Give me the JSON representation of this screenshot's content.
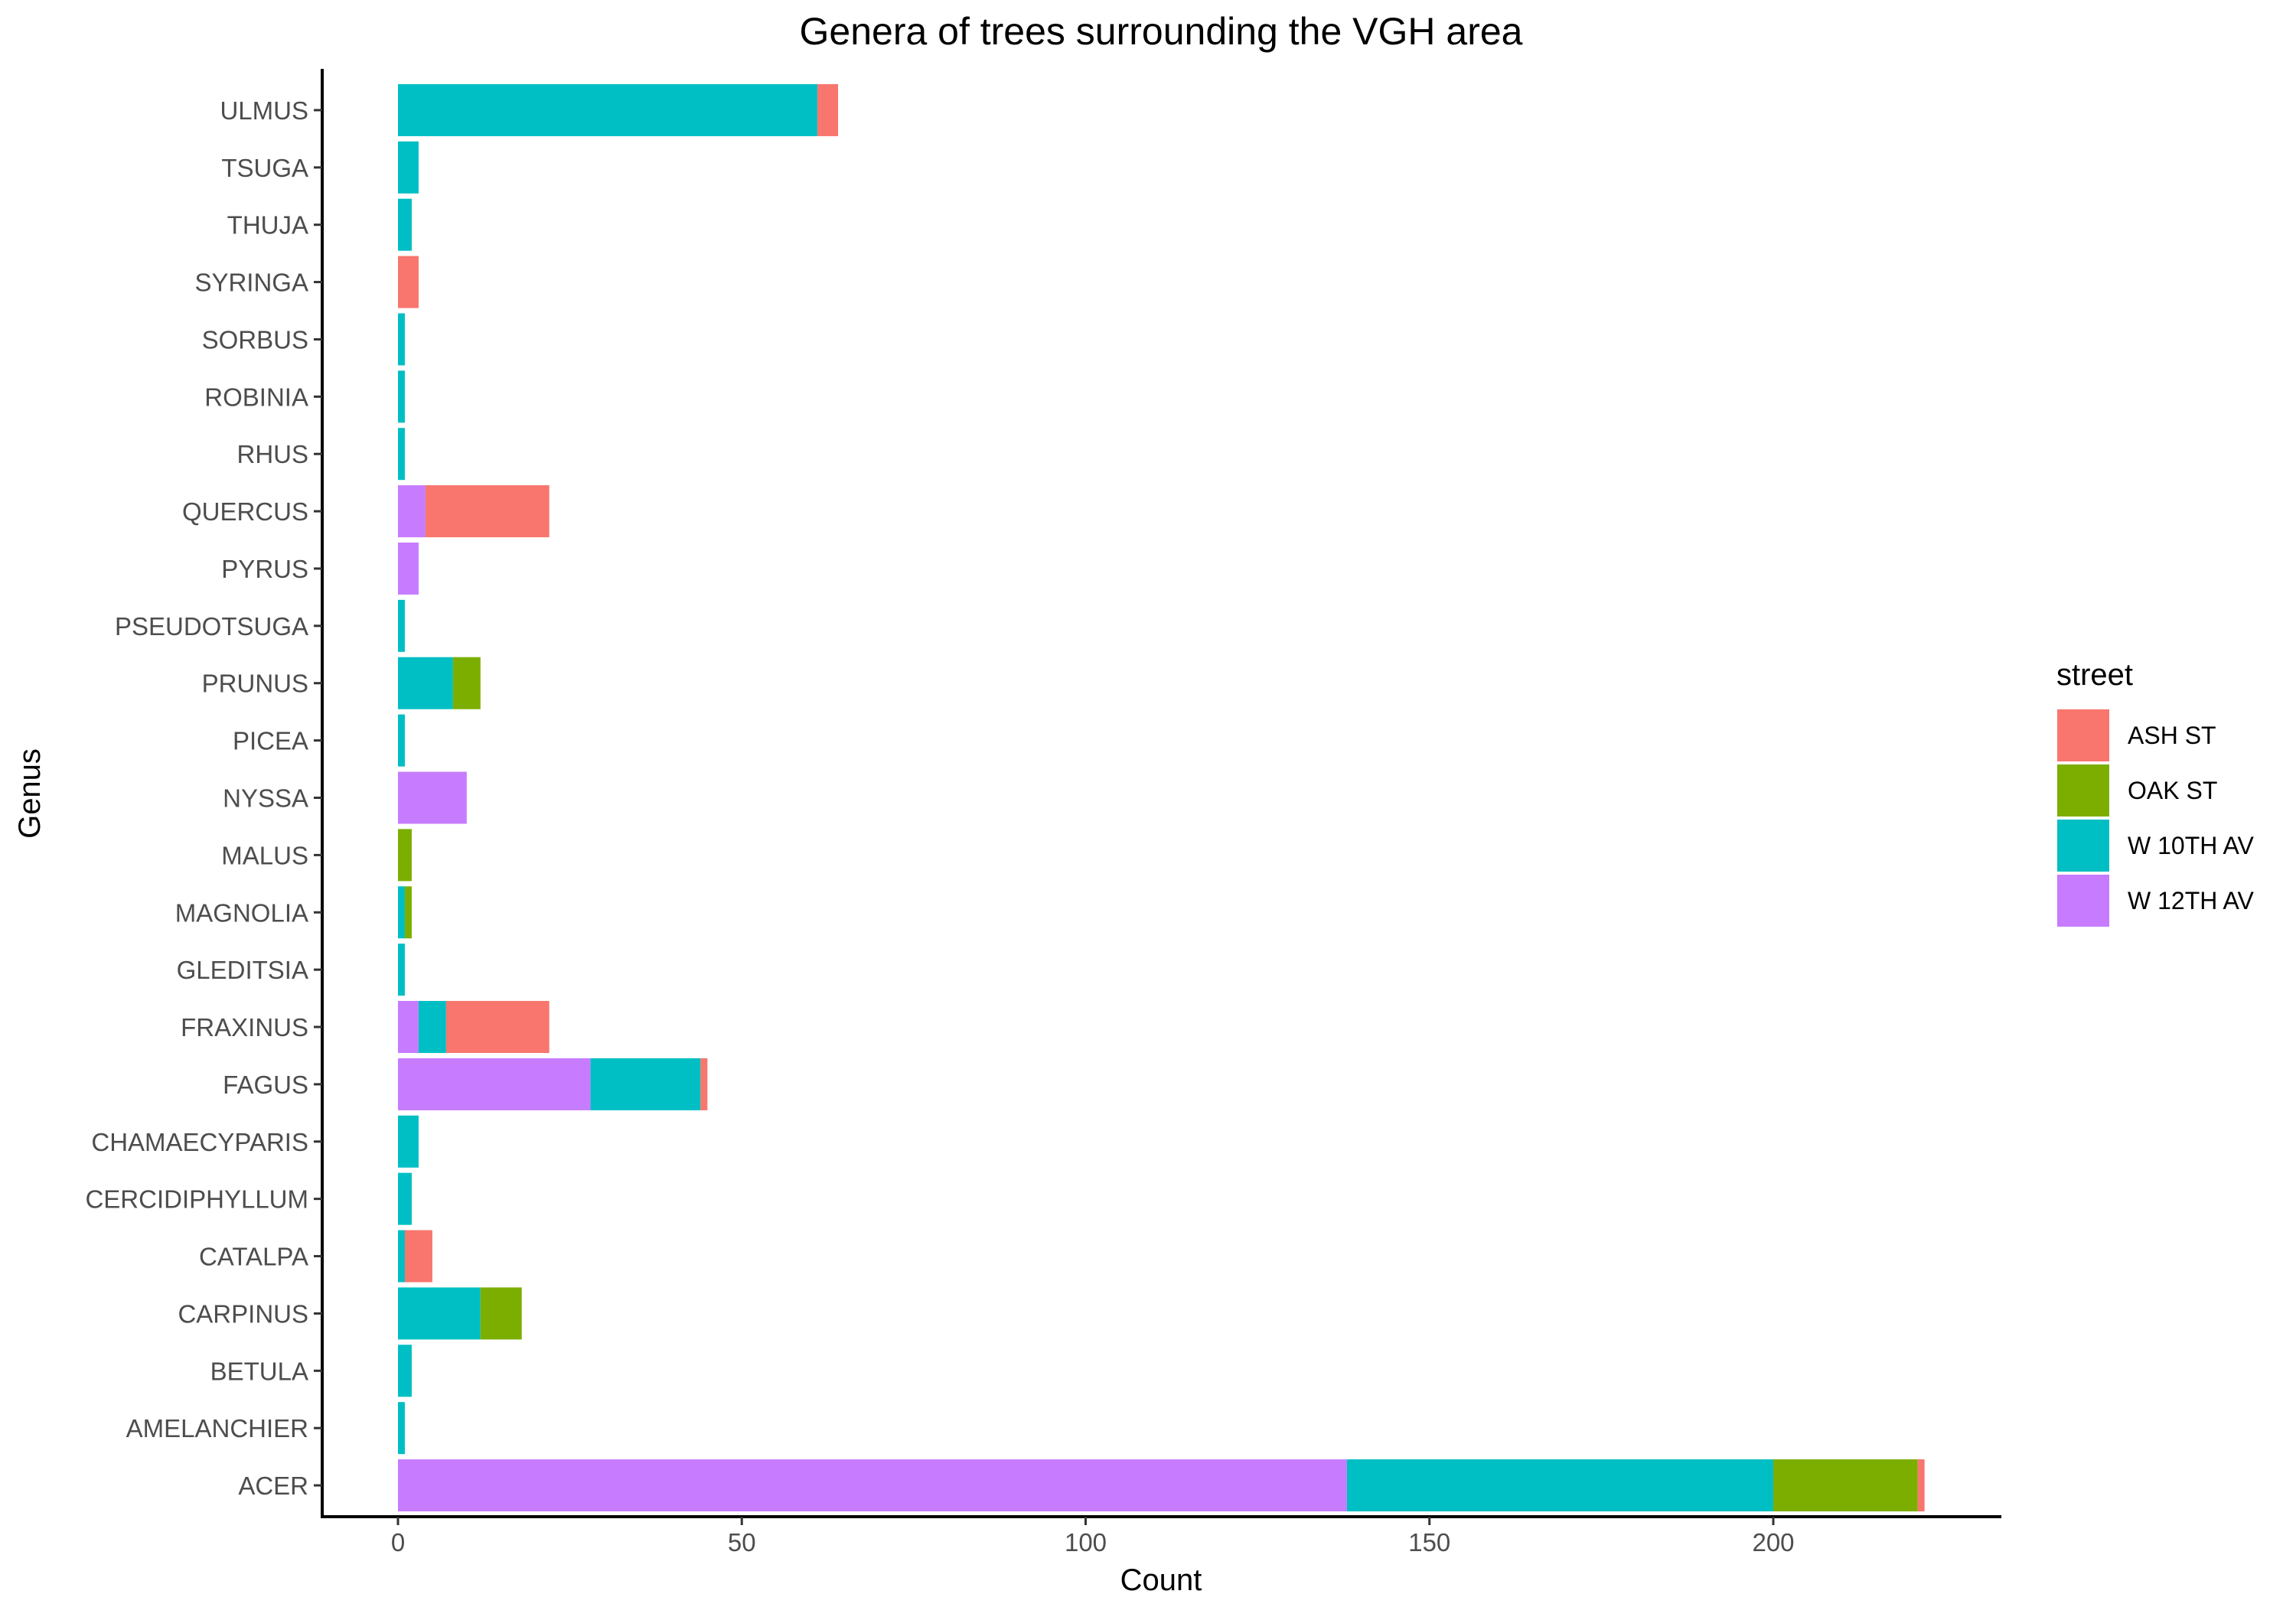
{
  "chart_data": {
    "type": "bar",
    "orientation": "horizontal",
    "stacked": true,
    "title": "Genera of trees surrounding the VGH area",
    "xlabel": "Count",
    "ylabel": "Genus",
    "xlim": [
      -11,
      233
    ],
    "xticks": [
      0,
      50,
      100,
      150,
      200
    ],
    "grid": false,
    "legend": {
      "title": "street",
      "position": "right"
    },
    "categories": [
      "ACER",
      "AMELANCHIER",
      "BETULA",
      "CARPINUS",
      "CATALPA",
      "CERCIDIPHYLLUM",
      "CHAMAECYPARIS",
      "FAGUS",
      "FRAXINUS",
      "GLEDITSIA",
      "MAGNOLIA",
      "MALUS",
      "NYSSA",
      "PICEA",
      "PRUNUS",
      "PSEUDOTSUGA",
      "PYRUS",
      "QUERCUS",
      "RHUS",
      "ROBINIA",
      "SORBUS",
      "SYRINGA",
      "THUJA",
      "TSUGA",
      "ULMUS"
    ],
    "series": [
      {
        "name": "ASH ST",
        "color": "#F8766D",
        "values": [
          1,
          0,
          0,
          0,
          4,
          0,
          0,
          1,
          15,
          0,
          0,
          0,
          0,
          0,
          0,
          0,
          0,
          18,
          0,
          0,
          0,
          3,
          0,
          0,
          3
        ]
      },
      {
        "name": "OAK ST",
        "color": "#7CAE00",
        "values": [
          21,
          0,
          0,
          6,
          0,
          0,
          0,
          0,
          0,
          0,
          1,
          2,
          0,
          0,
          4,
          0,
          0,
          0,
          0,
          0,
          0,
          0,
          0,
          0,
          0
        ]
      },
      {
        "name": "W 10TH AV",
        "color": "#00BFC4",
        "values": [
          62,
          1,
          2,
          12,
          1,
          2,
          3,
          16,
          4,
          1,
          1,
          0,
          0,
          1,
          8,
          1,
          0,
          0,
          1,
          1,
          1,
          0,
          2,
          3,
          61
        ]
      },
      {
        "name": "W 12TH AV",
        "color": "#C77CFF",
        "values": [
          138,
          0,
          0,
          0,
          0,
          0,
          0,
          28,
          3,
          0,
          0,
          0,
          10,
          0,
          0,
          0,
          3,
          4,
          0,
          0,
          0,
          0,
          0,
          0,
          0
        ]
      }
    ],
    "stack_order_from_zero": [
      "W 12TH AV",
      "W 10TH AV",
      "OAK ST",
      "ASH ST"
    ]
  }
}
